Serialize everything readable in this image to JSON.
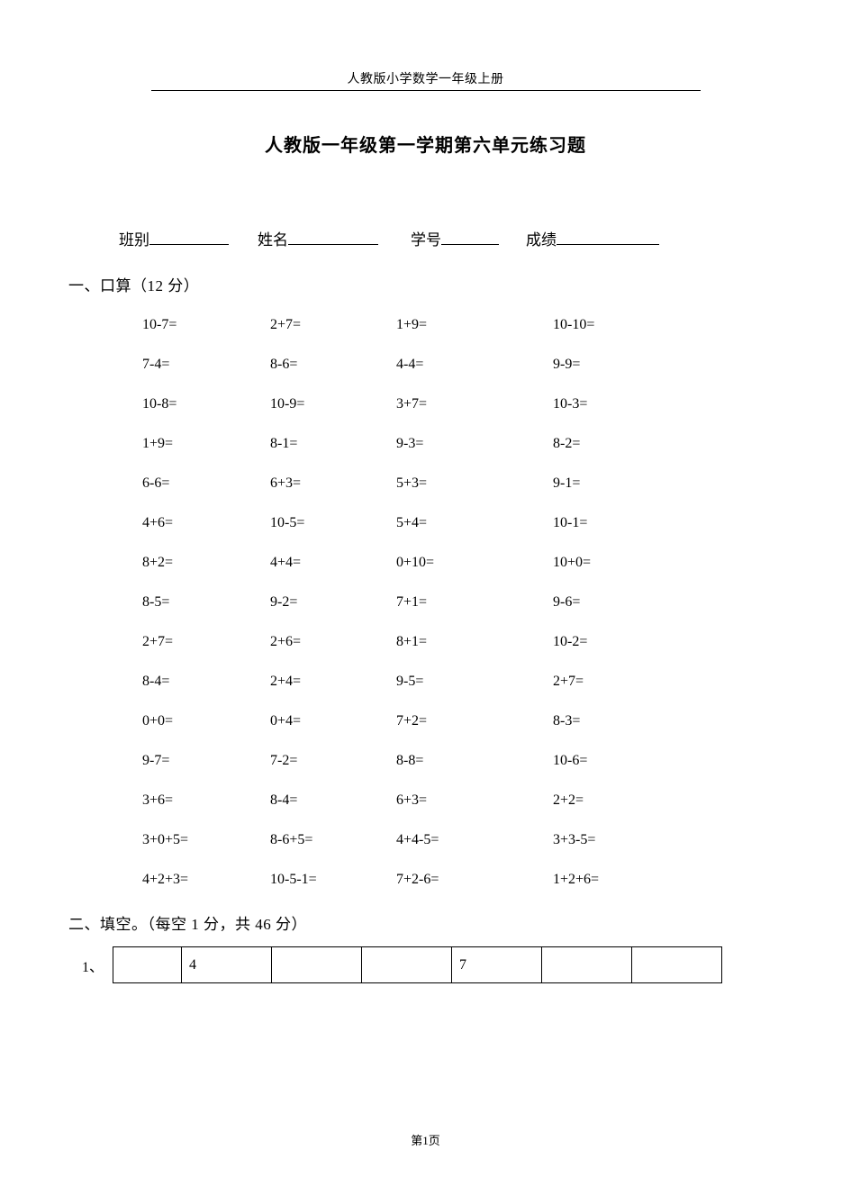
{
  "header": {
    "text": "人教版小学数学一年级上册"
  },
  "title": "人教版一年级第一学期第六单元练习题",
  "info": {
    "class_label": "班别",
    "name_label": "姓名",
    "id_label": "学号",
    "score_label": "成绩"
  },
  "section1": {
    "title": "一、口算（12 分）",
    "rows": [
      [
        "10-7=",
        "2+7=",
        "1+9=",
        "10-10="
      ],
      [
        "7-4=",
        "8-6=",
        "4-4=",
        "9-9="
      ],
      [
        "10-8=",
        "10-9=",
        "3+7=",
        "10-3="
      ],
      [
        "1+9=",
        "8-1=",
        "9-3=",
        "8-2="
      ],
      [
        "6-6=",
        "6+3=",
        "5+3=",
        "9-1="
      ],
      [
        "4+6=",
        "10-5=",
        "5+4=",
        "10-1="
      ],
      [
        "8+2=",
        "4+4=",
        "0+10=",
        "10+0="
      ],
      [
        "8-5=",
        "9-2=",
        "7+1=",
        "9-6="
      ],
      [
        "2+7=",
        "2+6=",
        "8+1=",
        "10-2="
      ],
      [
        "8-4=",
        "2+4=",
        "9-5=",
        "2+7="
      ],
      [
        "0+0=",
        "0+4=",
        "7+2=",
        "8-3="
      ],
      [
        "9-7=",
        "7-2=",
        "8-8=",
        "10-6="
      ],
      [
        "3+6=",
        "8-4=",
        "6+3=",
        "2+2="
      ],
      [
        "3+0+5=",
        "8-6+5=",
        "4+4-5=",
        "3+3-5="
      ],
      [
        "4+2+3=",
        "10-5-1=",
        "7+2-6=",
        "1+2+6="
      ]
    ]
  },
  "section2": {
    "title": "二、填空。（每空 1 分，共 46 分）",
    "q1_label": "1、",
    "q1_cells": [
      "",
      "4",
      "",
      "",
      "7",
      "",
      ""
    ],
    "q1_widths": [
      76,
      100,
      100,
      100,
      100,
      100,
      100
    ]
  },
  "footer": "第1页",
  "style": {
    "background": "#ffffff",
    "text_color": "#000000",
    "header_fontsize": 14,
    "title_fontsize": 20,
    "body_fontsize": 17,
    "problem_fontsize": 16,
    "info_blank_widths": {
      "class": 88,
      "name": 100,
      "id": 64,
      "score": 114
    }
  }
}
